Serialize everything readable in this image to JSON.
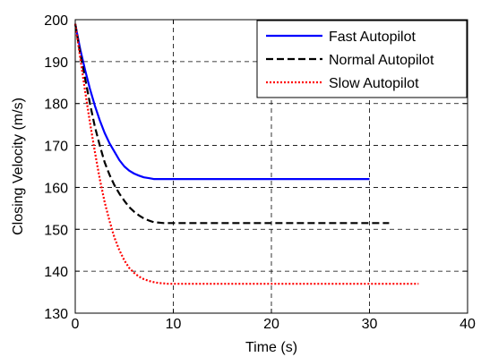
{
  "chart_data": {
    "type": "line",
    "title": "",
    "xlabel": "Time (s)",
    "ylabel": "Closing Velocity (m/s)",
    "xlim": [
      0,
      40
    ],
    "ylim": [
      130,
      200
    ],
    "xticks": [
      0,
      10,
      20,
      30,
      40
    ],
    "yticks": [
      130,
      140,
      150,
      160,
      170,
      180,
      190,
      200
    ],
    "grid": true,
    "legend_position": "top-right",
    "series": [
      {
        "name": "Fast Autopilot",
        "color": "#0000ff",
        "dash": "solid",
        "x": [
          0,
          0.5,
          1,
          1.5,
          2,
          2.5,
          3,
          3.5,
          4,
          4.5,
          5,
          5.5,
          6,
          6.5,
          7,
          7.5,
          8,
          10,
          15,
          20,
          25,
          30
        ],
        "y": [
          199,
          193,
          188,
          183.5,
          179.5,
          176,
          173,
          170.5,
          168.5,
          166.5,
          165,
          164,
          163.3,
          162.8,
          162.4,
          162.2,
          162,
          162,
          162,
          162,
          162,
          162
        ]
      },
      {
        "name": "Normal Autopilot",
        "color": "#000000",
        "dash": "dashed",
        "x": [
          0,
          0.5,
          1,
          1.5,
          2,
          2.5,
          3,
          3.5,
          4,
          4.5,
          5,
          5.5,
          6,
          6.5,
          7,
          7.5,
          8,
          9,
          10,
          15,
          20,
          25,
          30,
          32
        ],
        "y": [
          199,
          192,
          186,
          180,
          174.5,
          170,
          166,
          163,
          160.5,
          158.5,
          156.8,
          155.3,
          154.2,
          153.3,
          152.6,
          152.1,
          151.7,
          151.5,
          151.5,
          151.5,
          151.5,
          151.5,
          151.5,
          151.5
        ]
      },
      {
        "name": "Slow Autopilot",
        "color": "#ff0000",
        "dash": "dotted",
        "x": [
          0,
          0.5,
          1,
          1.5,
          2,
          2.5,
          3,
          3.5,
          4,
          4.5,
          5,
          5.5,
          6,
          6.5,
          7,
          7.5,
          8,
          8.5,
          9,
          9.5,
          10,
          15,
          20,
          25,
          30,
          35
        ],
        "y": [
          199,
          191,
          183,
          175.5,
          168.5,
          162,
          156.5,
          152,
          148,
          145,
          142.6,
          140.8,
          139.6,
          138.7,
          138.1,
          137.7,
          137.4,
          137.2,
          137.1,
          137,
          137,
          137,
          137,
          137,
          137,
          137
        ]
      }
    ]
  }
}
